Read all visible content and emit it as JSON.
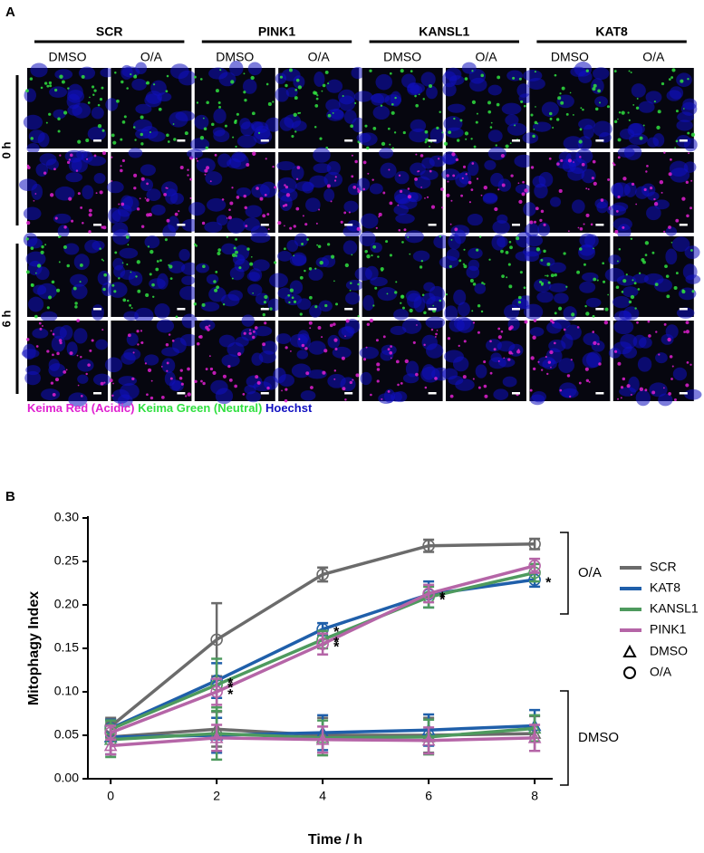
{
  "panel_a": {
    "label": "A",
    "groups": [
      {
        "name": "SCR",
        "conditions": [
          "DMSO",
          "O/A"
        ]
      },
      {
        "name": "PINK1",
        "conditions": [
          "DMSO",
          "O/A"
        ]
      },
      {
        "name": "KANSL1",
        "conditions": [
          "DMSO",
          "O/A"
        ]
      },
      {
        "name": "KAT8",
        "conditions": [
          "DMSO",
          "O/A"
        ]
      }
    ],
    "timepoints": [
      "0 h",
      "6 h"
    ],
    "channels": [
      {
        "name": "Keima Red (Acidic)",
        "color": "#e020d0"
      },
      {
        "name": "Keima Green (Neutral)",
        "color": "#30e040"
      },
      {
        "name": "Hoechst",
        "color": "#1010c0"
      }
    ]
  },
  "chart_data": {
    "type": "line",
    "panel_label": "B",
    "x_label": "Time / h",
    "y_label": "Mitophagy Index",
    "x": [
      0,
      2,
      4,
      6,
      8
    ],
    "xlim": [
      -0.43,
      8.34
    ],
    "xticks": [
      0,
      2,
      4,
      6,
      8
    ],
    "ylim": [
      0,
      0.3
    ],
    "yticks": [
      {
        "value": 0,
        "label": "0.00"
      },
      {
        "value": 0.05,
        "label": "0.05"
      },
      {
        "value": 0.1,
        "label": "0.10"
      },
      {
        "value": 0.15,
        "label": "0.15"
      },
      {
        "value": 0.2,
        "label": "0.20"
      },
      {
        "value": 0.25,
        "label": "0.25"
      },
      {
        "value": 0.3,
        "label": "0.30"
      }
    ],
    "conditions": [
      {
        "name": "DMSO",
        "marker": "triangle"
      },
      {
        "name": "O/A",
        "marker": "circle"
      }
    ],
    "annotations": [
      {
        "text": "O/A"
      },
      {
        "text": "DMSO"
      }
    ],
    "significance_marker": "*",
    "series": [
      {
        "name": "SCR",
        "color": "#6b6b6b",
        "values": [
          0.06,
          0.16,
          0.235,
          0.268,
          0.27
        ],
        "errors": [
          0.01,
          0.042,
          0.008,
          0.007,
          0.006
        ],
        "dmso_values": [
          0.048,
          0.057,
          0.05,
          0.05,
          0.052
        ],
        "dmso_errors": [
          0.02,
          0.02,
          0.02,
          0.02,
          0.02
        ],
        "significant": [
          false,
          false,
          false,
          false,
          false
        ]
      },
      {
        "name": "KAT8",
        "color": "#1f5faa",
        "values": [
          0.058,
          0.113,
          0.172,
          0.212,
          0.229
        ],
        "errors": [
          0.01,
          0.02,
          0.007,
          0.015,
          0.008
        ],
        "dmso_values": [
          0.048,
          0.05,
          0.053,
          0.056,
          0.061
        ],
        "dmso_errors": [
          0.02,
          0.02,
          0.02,
          0.018,
          0.018
        ],
        "significant": [
          false,
          true,
          true,
          true,
          true
        ]
      },
      {
        "name": "KANSL1",
        "color": "#4e9a5e",
        "values": [
          0.057,
          0.108,
          0.16,
          0.209,
          0.237
        ],
        "errors": [
          0.01,
          0.03,
          0.01,
          0.012,
          0.01
        ],
        "dmso_values": [
          0.045,
          0.052,
          0.047,
          0.048,
          0.058
        ],
        "dmso_errors": [
          0.02,
          0.03,
          0.02,
          0.02,
          0.015
        ],
        "significant": [
          false,
          true,
          true,
          true,
          false
        ]
      },
      {
        "name": "PINK1",
        "color": "#b565a7",
        "values": [
          0.053,
          0.1,
          0.155,
          0.213,
          0.245
        ],
        "errors": [
          0.008,
          0.015,
          0.012,
          0.01,
          0.008
        ],
        "dmso_values": [
          0.038,
          0.047,
          0.045,
          0.044,
          0.047
        ],
        "dmso_errors": [
          0.01,
          0.015,
          0.015,
          0.015,
          0.015
        ],
        "significant": [
          false,
          true,
          true,
          false,
          false
        ]
      }
    ]
  }
}
